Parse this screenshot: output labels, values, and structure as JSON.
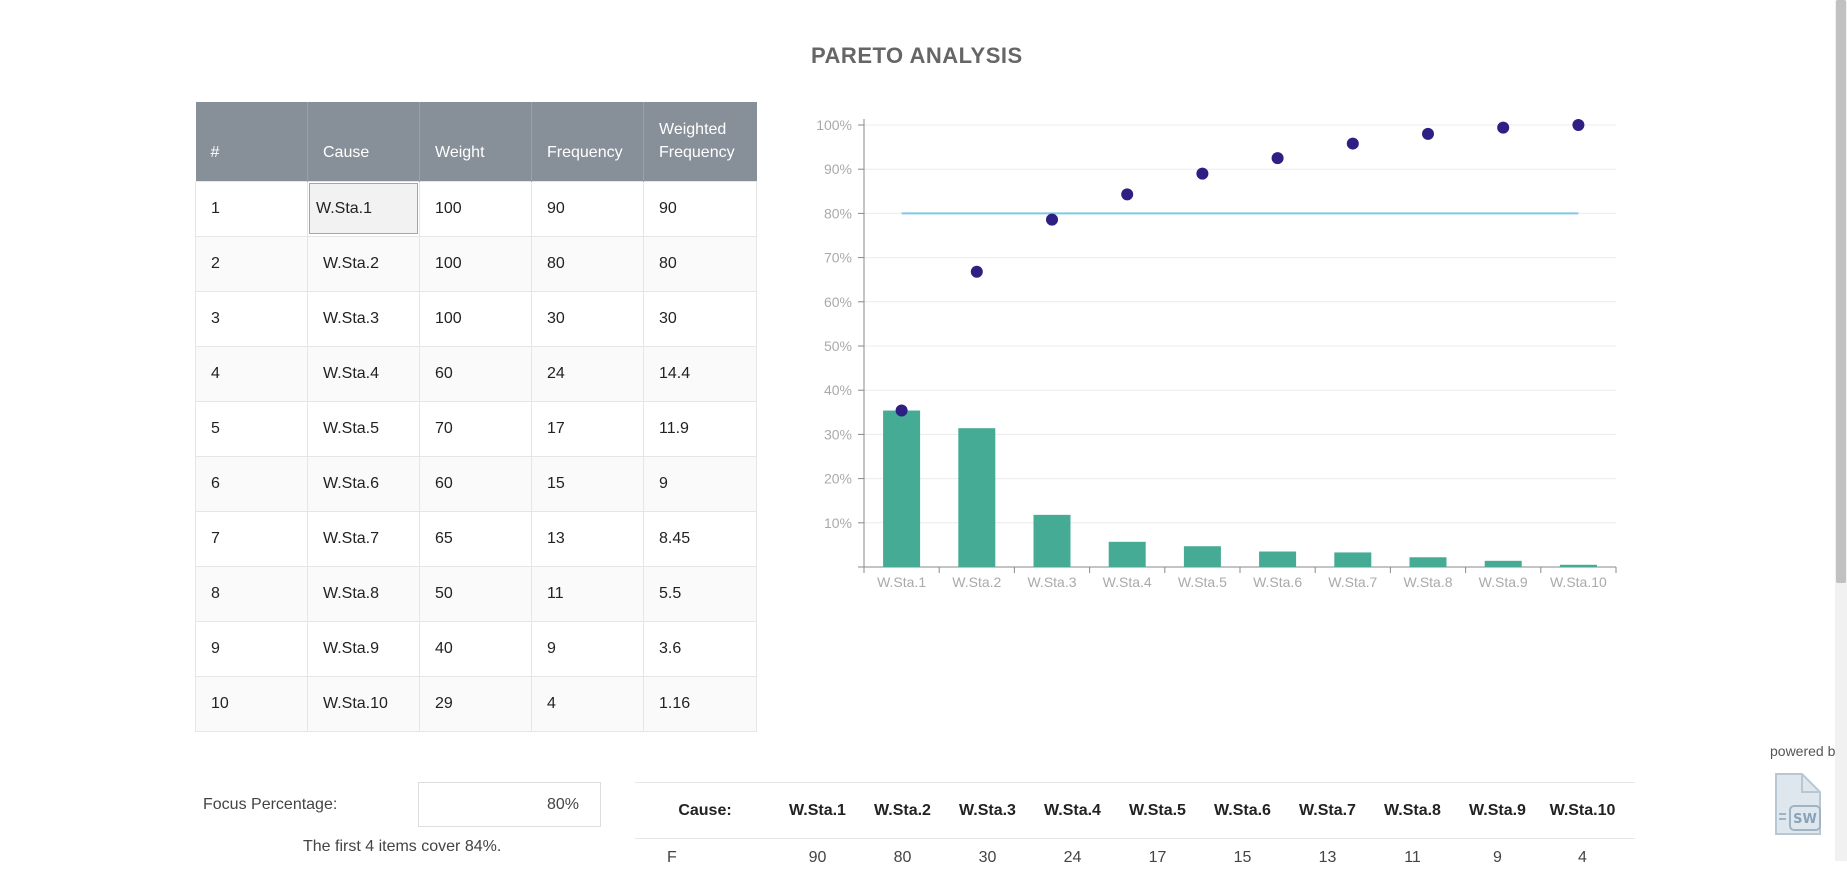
{
  "title": "PARETO ANALYSIS",
  "table": {
    "headers": [
      "#",
      "Cause",
      "Weight",
      "Frequency",
      "Weighted Frequency"
    ],
    "rows": [
      [
        "1",
        "W.Sta.1",
        "100",
        "90",
        "90"
      ],
      [
        "2",
        "W.Sta.2",
        "100",
        "80",
        "80"
      ],
      [
        "3",
        "W.Sta.3",
        "100",
        "30",
        "30"
      ],
      [
        "4",
        "W.Sta.4",
        "60",
        "24",
        "14.4"
      ],
      [
        "5",
        "W.Sta.5",
        "70",
        "17",
        "11.9"
      ],
      [
        "6",
        "W.Sta.6",
        "60",
        "15",
        "9"
      ],
      [
        "7",
        "W.Sta.7",
        "65",
        "13",
        "8.45"
      ],
      [
        "8",
        "W.Sta.8",
        "50",
        "11",
        "5.5"
      ],
      [
        "9",
        "W.Sta.9",
        "40",
        "9",
        "3.6"
      ],
      [
        "10",
        "W.Sta.10",
        "29",
        "4",
        "1.16"
      ]
    ]
  },
  "chart_data": {
    "type": "bar",
    "title": "",
    "categories": [
      "W.Sta.1",
      "W.Sta.2",
      "W.Sta.3",
      "W.Sta.4",
      "W.Sta.5",
      "W.Sta.6",
      "W.Sta.7",
      "W.Sta.8",
      "W.Sta.9",
      "W.Sta.10"
    ],
    "y_ticks": [
      "10%",
      "20%",
      "30%",
      "40%",
      "50%",
      "60%",
      "70%",
      "80%",
      "90%",
      "100%"
    ],
    "ylim": [
      0,
      100
    ],
    "series": [
      {
        "type": "bar",
        "values": [
          35.4,
          31.4,
          11.8,
          5.7,
          4.7,
          3.5,
          3.3,
          2.2,
          1.4,
          0.5
        ],
        "color": "#45ab95"
      },
      {
        "type": "scatter",
        "values": [
          35.4,
          66.8,
          78.6,
          84.3,
          89.0,
          92.5,
          95.8,
          98.0,
          99.4,
          100
        ],
        "color": "#2e1f82"
      },
      {
        "type": "line",
        "values": [
          80,
          80,
          80,
          80,
          80,
          80,
          80,
          80,
          80,
          80
        ],
        "color": "#7fc9e6"
      }
    ],
    "grid": true
  },
  "focus": {
    "label": "Focus Percentage:",
    "value": "80%",
    "cover_text": "The first 4 items cover 84%."
  },
  "summary": {
    "label": "Cause:",
    "causes": [
      "W.Sta.1",
      "W.Sta.2",
      "W.Sta.3",
      "W.Sta.4",
      "W.Sta.5",
      "W.Sta.6",
      "W.Sta.7",
      "W.Sta.8",
      "W.Sta.9",
      "W.Sta.10"
    ],
    "row2_label": "F",
    "row2_values": [
      "90",
      "80",
      "30",
      "24",
      "17",
      "15",
      "13",
      "11",
      "9",
      "4"
    ]
  },
  "branding": {
    "powered_by": "powered by",
    "logo_text": "SW"
  }
}
